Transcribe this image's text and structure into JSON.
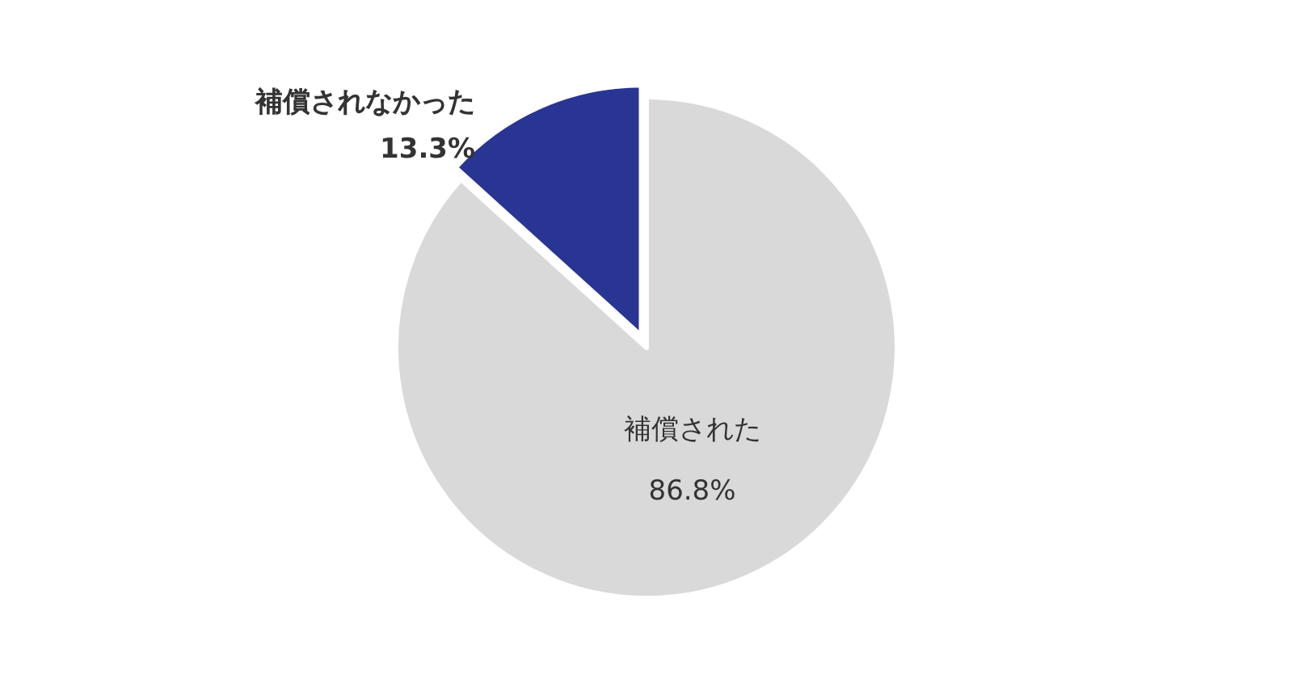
{
  "chart_data": {
    "type": "pie",
    "categories": [
      "補償された",
      "補償されなかった"
    ],
    "values": [
      86.8,
      13.3
    ],
    "colors": [
      "#d9d9d9",
      "#283593"
    ],
    "value_labels": [
      "86.8%",
      "13.3%"
    ],
    "legend": false
  }
}
